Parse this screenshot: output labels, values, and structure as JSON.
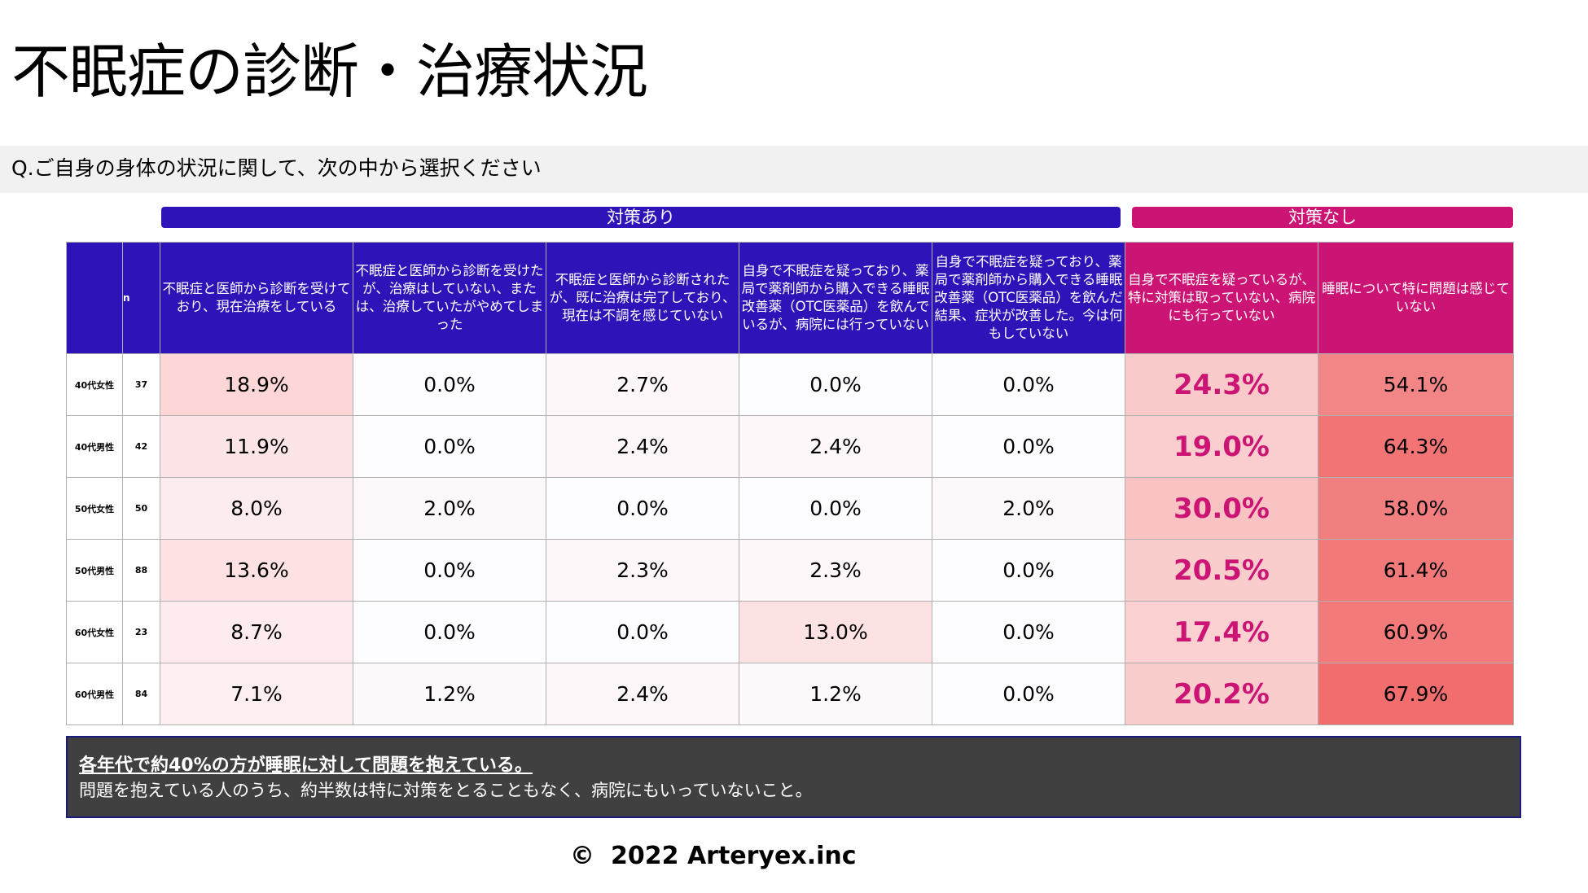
{
  "page": {
    "title": "不眠症の診断・治療状況",
    "question": "Q.ご自身の身体の状況に関して、次の中から選択ください",
    "footer_symbol": "©",
    "footer_text": "2022 Arteryex.inc"
  },
  "groups": {
    "with_measures": "対策あり",
    "without_measures": "対策なし"
  },
  "table": {
    "n_header": "n",
    "columns": [
      "不眠症と医師から診断を受けており、現在治療をしている",
      "不眠症と医師から診断を受けたが、治療はしていない、または、治療していたがやめてしまった",
      "不眠症と医師から診断されたが、既に治療は完了しており、現在は不調を感じていない",
      "自身で不眠症を疑っており、薬局で薬剤師から購入できる睡眠改善薬（OTC医薬品）を飲んでいるが、病院には行っていない",
      "自身で不眠症を疑っており、薬局で薬剤師から購入できる睡眠改善薬（OTC医薬品）を飲んだ結果、症状が改善した。今は何もしていない",
      "自身で不眠症を疑っているが、特に対策は取っていない、病院にも行っていない",
      "睡眠について特に問題は感じていない"
    ],
    "rows": [
      {
        "label": "40代女性",
        "n": "37",
        "values": [
          "18.9%",
          "0.0%",
          "2.7%",
          "0.0%",
          "0.0%",
          "24.3%",
          "54.1%"
        ]
      },
      {
        "label": "40代男性",
        "n": "42",
        "values": [
          "11.9%",
          "0.0%",
          "2.4%",
          "2.4%",
          "0.0%",
          "19.0%",
          "64.3%"
        ]
      },
      {
        "label": "50代女性",
        "n": "50",
        "values": [
          "8.0%",
          "2.0%",
          "0.0%",
          "0.0%",
          "2.0%",
          "30.0%",
          "58.0%"
        ]
      },
      {
        "label": "50代男性",
        "n": "88",
        "values": [
          "13.6%",
          "0.0%",
          "2.3%",
          "2.3%",
          "0.0%",
          "20.5%",
          "61.4%"
        ]
      },
      {
        "label": "60代女性",
        "n": "23",
        "values": [
          "8.7%",
          "0.0%",
          "0.0%",
          "13.0%",
          "0.0%",
          "17.4%",
          "60.9%"
        ]
      },
      {
        "label": "60代男性",
        "n": "84",
        "values": [
          "7.1%",
          "1.2%",
          "2.4%",
          "1.2%",
          "0.0%",
          "20.2%",
          "67.9%"
        ]
      }
    ]
  },
  "summary": {
    "headline": "各年代で約40%の方が睡眠に対して問題を抱えている。",
    "detail": "問題を抱えている人のうち、約半数は特に対策をとることもなく、病院にもいっていないこと。"
  },
  "colors": {
    "blue_header": "#2e14b8",
    "pink_header": "#cc1474",
    "summary_bg": "#404040"
  }
}
